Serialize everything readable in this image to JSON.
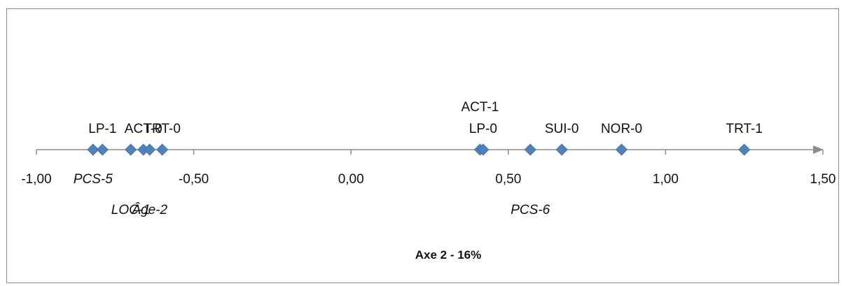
{
  "chart_data": {
    "type": "scatter",
    "title": "Axe 2 - 16%",
    "xlabel": "",
    "ylabel": "",
    "xlim": [
      -1.0,
      1.5
    ],
    "x_ticks": [
      "-1,00",
      "-0,50",
      "0,00",
      "0,50",
      "1,00",
      "1,50"
    ],
    "x_tick_values": [
      -1.0,
      -0.5,
      0.0,
      0.5,
      1.0,
      1.5
    ],
    "marker_color": "#4f81bd",
    "axis_color": "#8c8c8c",
    "points": [
      {
        "x": -0.82,
        "label": "PCS-5",
        "italic": true,
        "label_row": "below"
      },
      {
        "x": -0.79,
        "label": "LP-1",
        "italic": false,
        "label_row": "above"
      },
      {
        "x": -0.7,
        "label": "LOC-1",
        "italic": true,
        "label_row": "far_below"
      },
      {
        "x": -0.66,
        "label": "ACT-0",
        "italic": false,
        "label_row": "above"
      },
      {
        "x": -0.64,
        "label": "Âge-2",
        "italic": true,
        "label_row": "far_below"
      },
      {
        "x": -0.6,
        "label": "TRT-0",
        "italic": false,
        "label_row": "above"
      },
      {
        "x": 0.41,
        "label": "ACT-1",
        "italic": false,
        "label_row": "high_above"
      },
      {
        "x": 0.42,
        "label": "LP-0",
        "italic": false,
        "label_row": "above"
      },
      {
        "x": 0.57,
        "label": "PCS-6",
        "italic": true,
        "label_row": "far_below"
      },
      {
        "x": 0.67,
        "label": "SUI-0",
        "italic": false,
        "label_row": "above"
      },
      {
        "x": 0.86,
        "label": "NOR-0",
        "italic": false,
        "label_row": "above"
      },
      {
        "x": 1.25,
        "label": "TRT-1",
        "italic": false,
        "label_row": "above"
      }
    ]
  }
}
